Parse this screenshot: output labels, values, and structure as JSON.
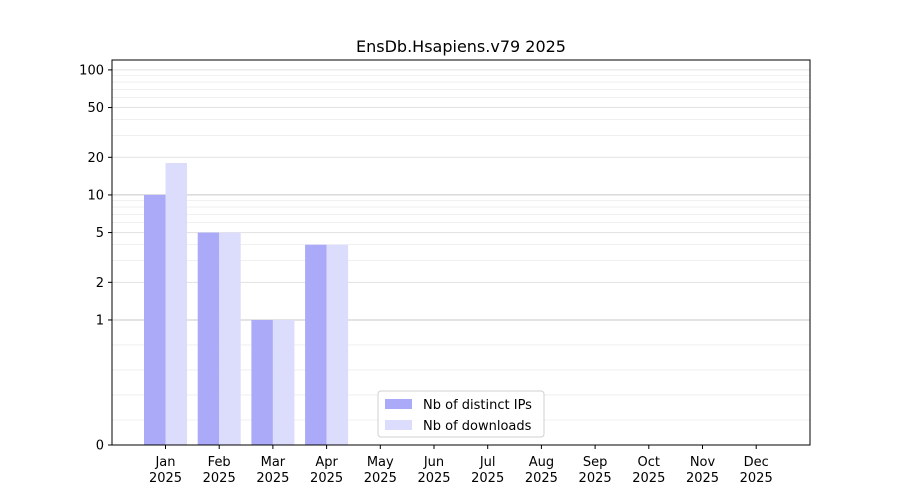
{
  "chart_data": {
    "type": "bar",
    "title": "EnsDb.Hsapiens.v79 2025",
    "categories": [
      "Jan\n2025",
      "Feb\n2025",
      "Mar\n2025",
      "Apr\n2025",
      "May\n2025",
      "Jun\n2025",
      "Jul\n2025",
      "Aug\n2025",
      "Sep\n2025",
      "Oct\n2025",
      "Nov\n2025",
      "Dec\n2025"
    ],
    "series": [
      {
        "name": "Nb of distinct IPs",
        "color": "#aaaaf8",
        "values": [
          10,
          5,
          1,
          4,
          0,
          0,
          0,
          0,
          0,
          0,
          0,
          0
        ]
      },
      {
        "name": "Nb of downloads",
        "color": "#dcdcfc",
        "values": [
          18,
          5,
          1,
          4,
          0,
          0,
          0,
          0,
          0,
          0,
          0,
          0
        ]
      }
    ],
    "y_scale": "symlog",
    "y_ticks": [
      0,
      1,
      2,
      5,
      10,
      20,
      50,
      100
    ],
    "y_tick_labels": [
      "0",
      "1",
      "2",
      "5",
      "10",
      "20",
      "50",
      "100"
    ],
    "ylim": [
      0,
      120
    ],
    "grid": true,
    "legend_position": "bottom-center",
    "xlabel": "",
    "ylabel": ""
  }
}
